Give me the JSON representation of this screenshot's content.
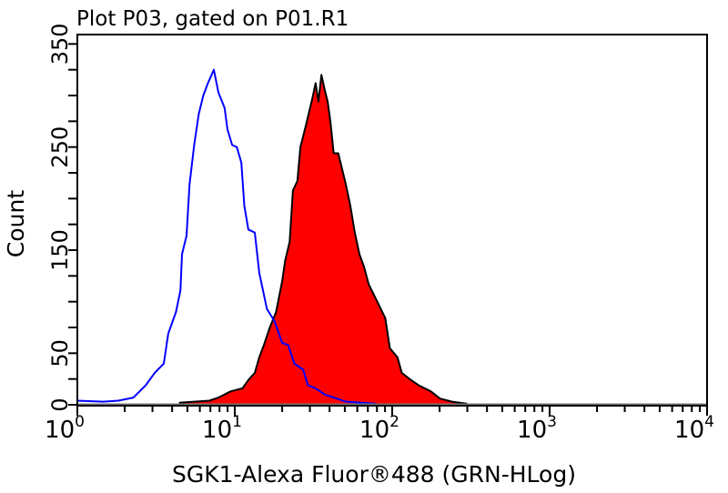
{
  "chart_data": {
    "type": "area",
    "title": "Plot P03, gated on P01.R1",
    "xlabel": "SGK1-Alexa Fluor®488 (GRN-HLog)",
    "ylabel": "Count",
    "x_scale": "log",
    "xlim": [
      1,
      10000
    ],
    "ylim": [
      0,
      360
    ],
    "x_ticks": [
      {
        "base": "10",
        "exp": "0",
        "value": 1
      },
      {
        "base": "10",
        "exp": "1",
        "value": 10
      },
      {
        "base": "10",
        "exp": "2",
        "value": 100
      },
      {
        "base": "10",
        "exp": "3",
        "value": 1000
      },
      {
        "base": "10",
        "exp": "4",
        "value": 10000
      }
    ],
    "y_ticks": [
      0,
      50,
      150,
      250,
      350
    ],
    "y_minor_step": 25,
    "grid": false,
    "series": [
      {
        "style": "outline",
        "color": "#0000ff",
        "x": [
          1.0,
          1.46,
          1.82,
          2.27,
          2.72,
          3.1,
          3.54,
          3.78,
          4.23,
          4.52,
          4.62,
          4.94,
          5.16,
          5.52,
          5.9,
          6.31,
          6.75,
          7.36,
          7.87,
          8.61,
          8.99,
          9.62,
          10.3,
          11.0,
          11.5,
          12.2,
          13.4,
          14.3,
          16.0,
          17.9,
          20.0,
          21.8,
          23.9,
          27.2,
          29.1,
          32.6,
          37.2,
          42.5,
          50.7,
          79.1
        ],
        "y": [
          4,
          3,
          4,
          7,
          19,
          31,
          40,
          69,
          90,
          111,
          146,
          164,
          214,
          252,
          282,
          300,
          312,
          325,
          303,
          288,
          267,
          252,
          250,
          235,
          193,
          170,
          167,
          128,
          93,
          81,
          60,
          58,
          40,
          34,
          19,
          16,
          10,
          7,
          3,
          1
        ]
      },
      {
        "style": "filled",
        "color": "#ff0000",
        "edge_color": "#000000",
        "x": [
          4.42,
          6.89,
          7.87,
          9.4,
          11.2,
          12.2,
          13.4,
          14.3,
          15.3,
          16.7,
          18.3,
          20.0,
          20.9,
          22.3,
          23.4,
          25.0,
          26.1,
          28.5,
          31.1,
          32.6,
          34.0,
          35.5,
          37.2,
          38.9,
          40.6,
          42.5,
          45.4,
          50.7,
          54.2,
          57.9,
          61.9,
          66.2,
          70.8,
          75.7,
          82.8,
          90.4,
          96.6,
          108,
          115,
          129,
          147,
          176,
          201,
          240,
          299
        ],
        "y": [
          2,
          4,
          7,
          13,
          16,
          24,
          31,
          46,
          58,
          75,
          90,
          120,
          140,
          158,
          208,
          217,
          250,
          273,
          297,
          312,
          294,
          320,
          306,
          294,
          273,
          244,
          244,
          214,
          193,
          167,
          146,
          134,
          117,
          108,
          96,
          84,
          55,
          46,
          31,
          25,
          19,
          13,
          6,
          3,
          1
        ]
      }
    ]
  }
}
